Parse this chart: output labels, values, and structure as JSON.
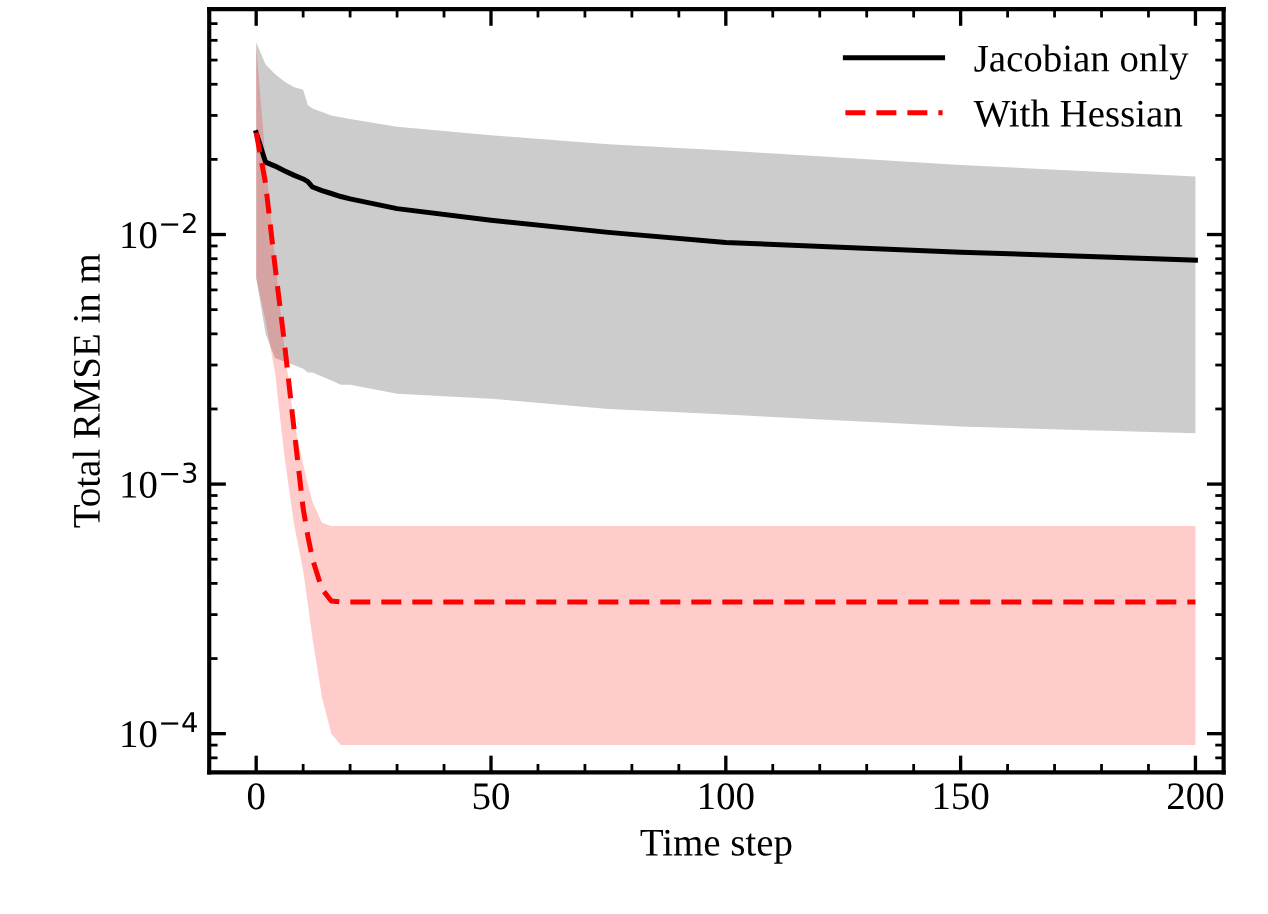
{
  "chart_data": {
    "type": "line",
    "xlabel": "Time step",
    "ylabel": "Total RMSE in m",
    "x": [
      0,
      2,
      4,
      6,
      8,
      10,
      11,
      12,
      14,
      16,
      18,
      20,
      30,
      50,
      75,
      100,
      150,
      200
    ],
    "series": [
      {
        "name": "Jacobian only",
        "color": "#000000",
        "line_style": "solid",
        "values": [
          0.0256,
          0.0195,
          0.0188,
          0.018,
          0.0173,
          0.0167,
          0.0163,
          0.0155,
          0.015,
          0.0146,
          0.0142,
          0.0139,
          0.0127,
          0.0114,
          0.0102,
          0.0093,
          0.0085,
          0.0079
        ],
        "upper": [
          0.059,
          0.048,
          0.044,
          0.041,
          0.039,
          0.038,
          0.033,
          0.032,
          0.031,
          0.03,
          0.0295,
          0.029,
          0.027,
          0.025,
          0.023,
          0.0217,
          0.019,
          0.0171
        ],
        "lower": [
          0.0067,
          0.004,
          0.0032,
          0.0031,
          0.003,
          0.0029,
          0.0028,
          0.0028,
          0.0027,
          0.0026,
          0.0025,
          0.0025,
          0.0023,
          0.0022,
          0.002,
          0.0019,
          0.0017,
          0.0016
        ]
      },
      {
        "name": "With Hessian",
        "color": "#ff0000",
        "line_style": "dashed",
        "values": [
          0.0256,
          0.016,
          0.0075,
          0.0037,
          0.0017,
          0.0008,
          0.00062,
          0.0005,
          0.00038,
          0.00034,
          0.000337,
          0.000337,
          0.000337,
          0.000337,
          0.000337,
          0.000337,
          0.000337,
          0.000337
        ],
        "upper": [
          0.057,
          0.02,
          0.008,
          0.0035,
          0.0018,
          0.0012,
          0.001,
          0.00085,
          0.0007,
          0.00068,
          0.00068,
          0.00068,
          0.00068,
          0.00068,
          0.00068,
          0.00068,
          0.00068,
          0.00068
        ],
        "lower": [
          0.0067,
          0.0045,
          0.0028,
          0.0013,
          0.0007,
          0.00045,
          0.00033,
          0.00024,
          0.00014,
          0.0001,
          9e-05,
          9e-05,
          9e-05,
          9e-05,
          9e-05,
          9e-05,
          9e-05,
          9e-05
        ]
      }
    ],
    "log": "y",
    "xlim": [
      -10,
      206
    ],
    "ylim": [
      7e-05,
      0.08
    ],
    "xticks": [
      0,
      50,
      100,
      150,
      200
    ],
    "yticks": [
      {
        "value": 0.0001,
        "label": "10$^{−4}$"
      },
      {
        "value": 0.001,
        "label": "10$^{−3}$"
      },
      {
        "value": 0.01,
        "label": "10$^{−2}$"
      }
    ],
    "legend": "top right",
    "grid": false,
    "marker": "none"
  }
}
